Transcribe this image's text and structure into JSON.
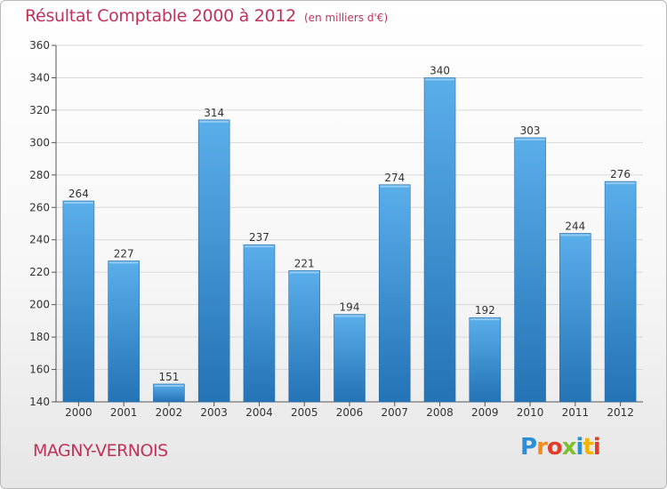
{
  "header": {
    "title": "Résultat Comptable 2000 à 2012",
    "subtitle": "(en milliers d'€)"
  },
  "footer": {
    "commune": "MAGNY-VERNOIS",
    "logo_text": "Proxiti",
    "logo_colors": [
      "#2a8fd6",
      "#f28c1e",
      "#e23d2a",
      "#7cbf2f",
      "#2a8fd6",
      "#f5b400",
      "#e23d2a"
    ]
  },
  "chart_data": {
    "type": "bar",
    "title": "Résultat Comptable 2000 à 2012",
    "subtitle": "(en milliers d'€)",
    "categories": [
      "2000",
      "2001",
      "2002",
      "2003",
      "2004",
      "2005",
      "2006",
      "2007",
      "2008",
      "2009",
      "2010",
      "2011",
      "2012"
    ],
    "values": [
      264,
      227,
      151,
      314,
      237,
      221,
      194,
      274,
      340,
      192,
      303,
      244,
      276
    ],
    "ylim": [
      140,
      360
    ],
    "yticks": [
      140,
      160,
      180,
      200,
      220,
      240,
      260,
      280,
      300,
      320,
      340,
      360
    ],
    "grid": true,
    "bar_color_top": "#5aaeea",
    "bar_color_bottom": "#2473b5",
    "text_color": "#333333",
    "grid_color": "#d9d9d9"
  }
}
